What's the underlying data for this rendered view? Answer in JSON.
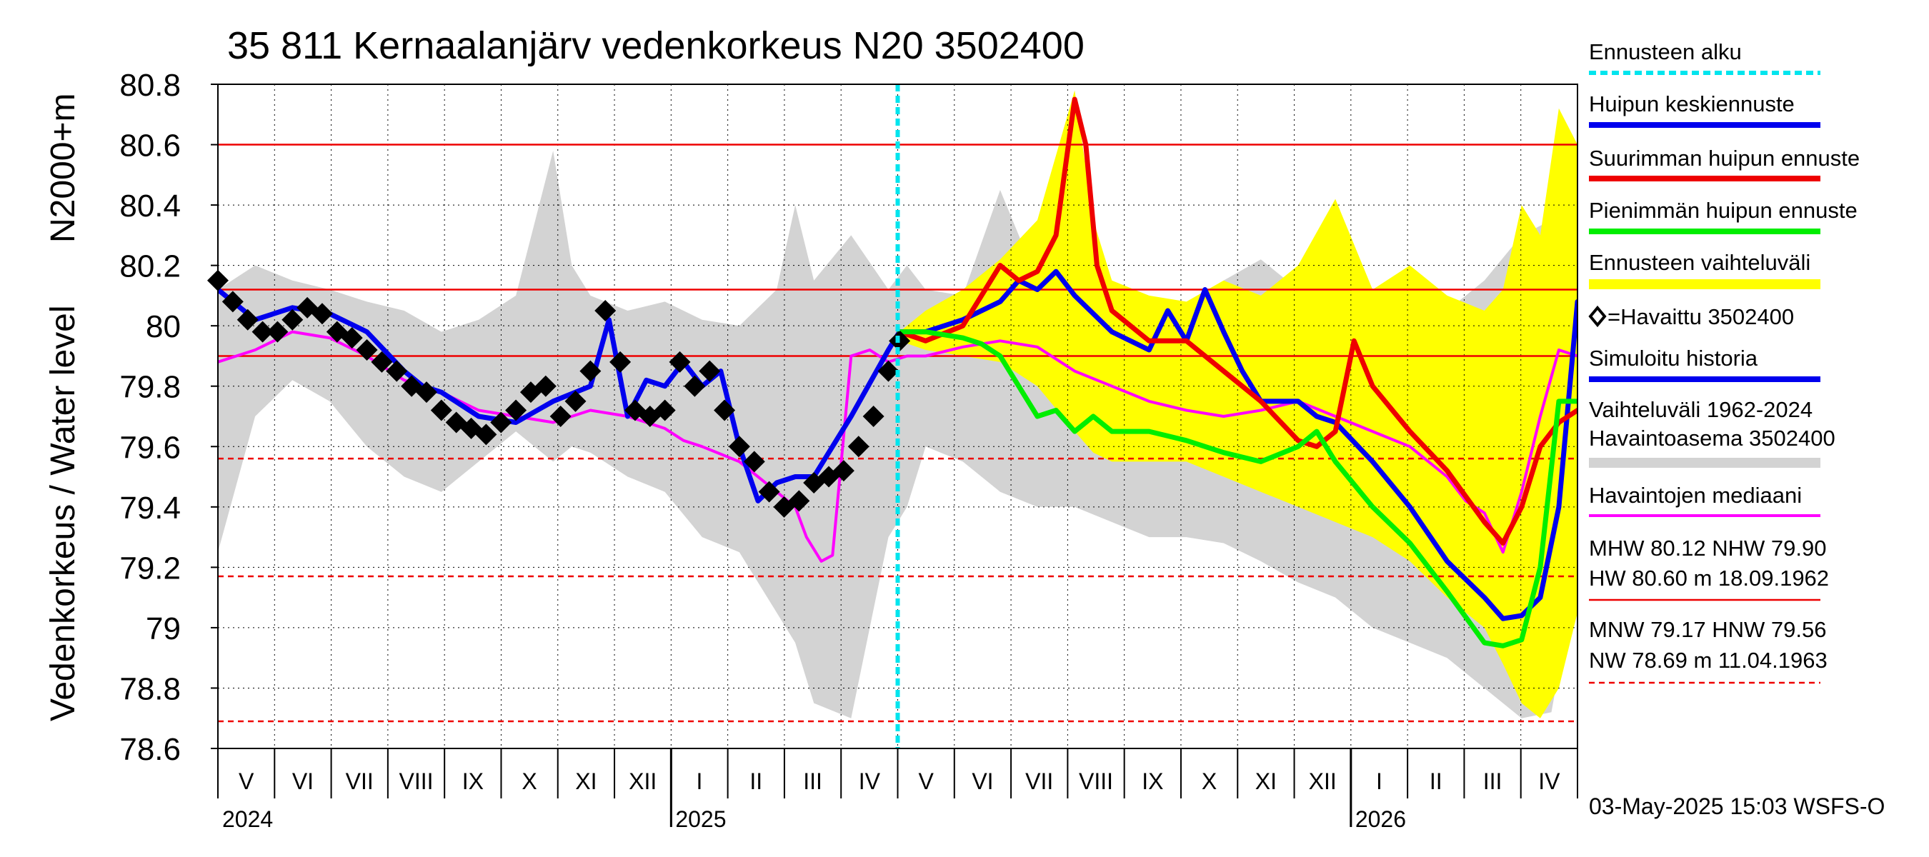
{
  "chart_data": {
    "type": "line",
    "title": "35 811 Kernaalanjärv vedenkorkeus N20 3502400",
    "ylabel_top": "N2000+m",
    "ylabel_bottom": "Vedenkorkeus / Water level",
    "ylim": [
      78.6,
      80.8
    ],
    "yticks": [
      78.6,
      78.8,
      79.0,
      79.2,
      79.4,
      79.6,
      79.8,
      80.0,
      80.2,
      80.4,
      80.6,
      80.8
    ],
    "x_domain_days": [
      0,
      365
    ],
    "month_labels": [
      "V",
      "VI",
      "VII",
      "VIII",
      "IX",
      "X",
      "XI",
      "XII",
      "I",
      "II",
      "III",
      "IV",
      "V",
      "VI",
      "VII",
      "VIII",
      "IX",
      "X",
      "XI",
      "XII",
      "I",
      "II",
      "III",
      "IV"
    ],
    "year_labels": [
      {
        "text": "2024",
        "month_index": 0
      },
      {
        "text": "2025",
        "month_index": 8
      },
      {
        "text": "2026",
        "month_index": 20
      }
    ],
    "forecast_start_month_index": 12,
    "reference_lines": [
      {
        "name": "MHW",
        "value": 80.12,
        "style": "solid",
        "color": "#ee0000"
      },
      {
        "name": "HW",
        "value": 80.6,
        "style": "solid",
        "color": "#ee0000"
      },
      {
        "name": "NHW",
        "value": 79.9,
        "style": "solid",
        "color": "#ee0000"
      },
      {
        "name": "MNW",
        "value": 79.17,
        "style": "dashed",
        "color": "#ee0000"
      },
      {
        "name": "HNW",
        "value": 79.56,
        "style": "dashed",
        "color": "#ee0000"
      },
      {
        "name": "NW",
        "value": 78.69,
        "style": "dashed",
        "color": "#ee0000"
      }
    ],
    "variation_band": {
      "name": "Vaihteluväli 1962-2024",
      "color": "#d3d3d3",
      "x": [
        0,
        10,
        20,
        30,
        40,
        50,
        60,
        70,
        80,
        90,
        95,
        100,
        110,
        120,
        130,
        140,
        150,
        155,
        160,
        170,
        180,
        185,
        190,
        200,
        210,
        220,
        230,
        240,
        250,
        260,
        270,
        280,
        290,
        300,
        310,
        320,
        330,
        340,
        350,
        358,
        365
      ],
      "upper": [
        80.12,
        80.2,
        80.15,
        80.12,
        80.08,
        80.05,
        79.98,
        80.02,
        80.1,
        80.58,
        80.2,
        80.1,
        80.05,
        80.08,
        80.02,
        80.0,
        80.12,
        80.4,
        80.15,
        80.3,
        80.12,
        80.2,
        80.12,
        80.1,
        80.45,
        80.15,
        80.12,
        80.1,
        80.08,
        80.0,
        80.15,
        80.22,
        80.12,
        80.02,
        80.05,
        80.1,
        80.05,
        80.15,
        80.3,
        80.35,
        80.1
      ],
      "lower": [
        79.25,
        79.7,
        79.82,
        79.75,
        79.6,
        79.5,
        79.45,
        79.55,
        79.65,
        79.55,
        79.6,
        79.58,
        79.5,
        79.45,
        79.3,
        79.25,
        79.05,
        78.95,
        78.75,
        78.7,
        79.3,
        79.4,
        79.6,
        79.55,
        79.45,
        79.4,
        79.4,
        79.35,
        79.3,
        79.3,
        79.28,
        79.22,
        79.15,
        79.1,
        79.0,
        78.95,
        78.9,
        78.8,
        78.7,
        78.72,
        79.2
      ]
    },
    "forecast_band": {
      "name": "Ennusteen vaihteluväli",
      "color": "#ffff00",
      "x": [
        183,
        190,
        200,
        210,
        220,
        230,
        235,
        240,
        250,
        260,
        270,
        280,
        290,
        300,
        310,
        320,
        330,
        340,
        345,
        350,
        355,
        360,
        365
      ],
      "upper": [
        79.98,
        80.05,
        80.12,
        80.22,
        80.35,
        80.78,
        80.35,
        80.15,
        80.1,
        80.08,
        80.15,
        80.1,
        80.2,
        80.42,
        80.12,
        80.2,
        80.1,
        80.05,
        80.12,
        80.4,
        80.3,
        80.72,
        80.6
      ],
      "lower": [
        79.95,
        79.92,
        79.9,
        79.88,
        79.8,
        79.65,
        79.58,
        79.55,
        79.55,
        79.55,
        79.5,
        79.45,
        79.4,
        79.35,
        79.3,
        79.22,
        79.1,
        79.0,
        78.88,
        78.75,
        78.7,
        78.8,
        79.05
      ]
    },
    "series": [
      {
        "name": "Havaintojen mediaani",
        "color": "#ff00ff",
        "width": 4,
        "x": [
          0,
          10,
          20,
          30,
          40,
          50,
          60,
          70,
          80,
          90,
          100,
          110,
          120,
          125,
          130,
          140,
          150,
          155,
          158,
          162,
          165,
          170,
          175,
          180,
          185,
          190,
          200,
          210,
          220,
          230,
          240,
          250,
          260,
          270,
          280,
          290,
          300,
          310,
          320,
          330,
          335,
          340,
          345,
          350,
          355,
          360,
          365
        ],
        "y": [
          79.88,
          79.92,
          79.98,
          79.96,
          79.9,
          79.82,
          79.78,
          79.72,
          79.7,
          79.68,
          79.72,
          79.7,
          79.66,
          79.62,
          79.6,
          79.55,
          79.45,
          79.4,
          79.3,
          79.22,
          79.24,
          79.9,
          79.92,
          79.88,
          79.9,
          79.9,
          79.93,
          79.95,
          79.93,
          79.85,
          79.8,
          79.75,
          79.72,
          79.7,
          79.72,
          79.75,
          79.7,
          79.65,
          79.6,
          79.5,
          79.42,
          79.38,
          79.25,
          79.45,
          79.7,
          79.92,
          79.9
        ]
      },
      {
        "name": "Simuloitu historia",
        "color": "#0000ee",
        "width": 7,
        "x": [
          0,
          10,
          20,
          30,
          40,
          50,
          55,
          60,
          70,
          80,
          90,
          100,
          105,
          110,
          115,
          120,
          125,
          130,
          135,
          140,
          145,
          150,
          155,
          160,
          170,
          180,
          183
        ],
        "y": [
          80.12,
          80.02,
          80.06,
          80.04,
          79.98,
          79.85,
          79.8,
          79.78,
          79.7,
          79.68,
          79.75,
          79.8,
          80.02,
          79.7,
          79.82,
          79.8,
          79.88,
          79.8,
          79.85,
          79.6,
          79.42,
          79.48,
          79.5,
          79.5,
          79.7,
          79.92,
          79.98
        ]
      },
      {
        "name": "Huipun keskiennuste",
        "color": "#0000ee",
        "width": 7,
        "x": [
          183,
          190,
          200,
          210,
          215,
          220,
          225,
          230,
          240,
          250,
          255,
          260,
          265,
          270,
          275,
          280,
          290,
          295,
          300,
          310,
          320,
          330,
          340,
          345,
          350,
          355,
          360,
          365
        ],
        "y": [
          79.98,
          79.98,
          80.02,
          80.08,
          80.15,
          80.12,
          80.18,
          80.1,
          79.98,
          79.92,
          80.05,
          79.95,
          80.12,
          79.98,
          79.85,
          79.75,
          79.75,
          79.7,
          79.68,
          79.55,
          79.4,
          79.22,
          79.1,
          79.03,
          79.04,
          79.1,
          79.4,
          80.08
        ]
      },
      {
        "name": "Suurimman huipun ennuste",
        "color": "#ee0000",
        "width": 7,
        "x": [
          183,
          190,
          200,
          210,
          215,
          220,
          225,
          230,
          233,
          236,
          240,
          250,
          260,
          270,
          280,
          290,
          295,
          300,
          305,
          310,
          320,
          330,
          340,
          345,
          350,
          355,
          360,
          365
        ],
        "y": [
          79.98,
          79.95,
          80.0,
          80.2,
          80.15,
          80.18,
          80.3,
          80.75,
          80.6,
          80.2,
          80.05,
          79.95,
          79.95,
          79.85,
          79.75,
          79.62,
          79.6,
          79.65,
          79.95,
          79.8,
          79.65,
          79.52,
          79.35,
          79.28,
          79.4,
          79.6,
          79.68,
          79.72
        ]
      },
      {
        "name": "Pienimmän huipun ennuste",
        "color": "#00ee00",
        "width": 7,
        "x": [
          183,
          190,
          200,
          205,
          210,
          215,
          220,
          225,
          230,
          235,
          240,
          250,
          260,
          270,
          280,
          290,
          295,
          300,
          310,
          320,
          330,
          340,
          345,
          350,
          355,
          360,
          365
        ],
        "y": [
          79.98,
          79.98,
          79.96,
          79.94,
          79.9,
          79.8,
          79.7,
          79.72,
          79.65,
          79.7,
          79.65,
          79.65,
          79.62,
          79.58,
          79.55,
          79.6,
          79.65,
          79.55,
          79.4,
          79.28,
          79.12,
          78.95,
          78.94,
          78.96,
          79.2,
          79.75,
          79.75
        ]
      },
      {
        "name": "Havaittu 3502400",
        "color": "#000000",
        "marker": "diamond",
        "x": [
          0,
          4,
          8,
          12,
          16,
          20,
          24,
          28,
          32,
          36,
          40,
          44,
          48,
          52,
          56,
          60,
          64,
          68,
          72,
          76,
          80,
          84,
          88,
          92,
          96,
          100,
          104,
          108,
          112,
          116,
          120,
          124,
          128,
          132,
          136,
          140,
          144,
          148,
          152,
          156,
          160,
          164,
          168,
          172,
          176,
          180,
          183
        ],
        "y": [
          80.15,
          80.08,
          80.02,
          79.98,
          79.98,
          80.02,
          80.06,
          80.04,
          79.98,
          79.96,
          79.92,
          79.88,
          79.85,
          79.8,
          79.78,
          79.72,
          79.68,
          79.66,
          79.64,
          79.68,
          79.72,
          79.78,
          79.8,
          79.7,
          79.75,
          79.85,
          80.05,
          79.88,
          79.72,
          79.7,
          79.72,
          79.88,
          79.8,
          79.85,
          79.72,
          79.6,
          79.55,
          79.45,
          79.4,
          79.42,
          79.48,
          79.5,
          79.52,
          79.6,
          79.7,
          79.85,
          79.95
        ]
      }
    ],
    "legend": {
      "forecast_start": "Ennusteen alku",
      "mean_peak": "Huipun keskiennuste",
      "max_peak": "Suurimman huipun ennuste",
      "min_peak": "Pienimmän huipun ennuste",
      "forecast_range": "Ennusteen vaihteluväli",
      "observed": "=Havaittu 3502400",
      "simulated": "Simuloitu historia",
      "range_line1": "Vaihteluväli 1962-2024",
      "range_line2": " Havaintoasema 3502400",
      "median": "Havaintojen mediaani",
      "stats1_line1": "MHW  80.12 NHW  79.90",
      "stats1_line2": "HW  80.60 m 18.09.1962",
      "stats2_line1": "MNW  79.17 HNW  79.56",
      "stats2_line2": "NW  78.69 m 11.04.1963"
    },
    "footer": "03-May-2025 15:03 WSFS-O"
  }
}
